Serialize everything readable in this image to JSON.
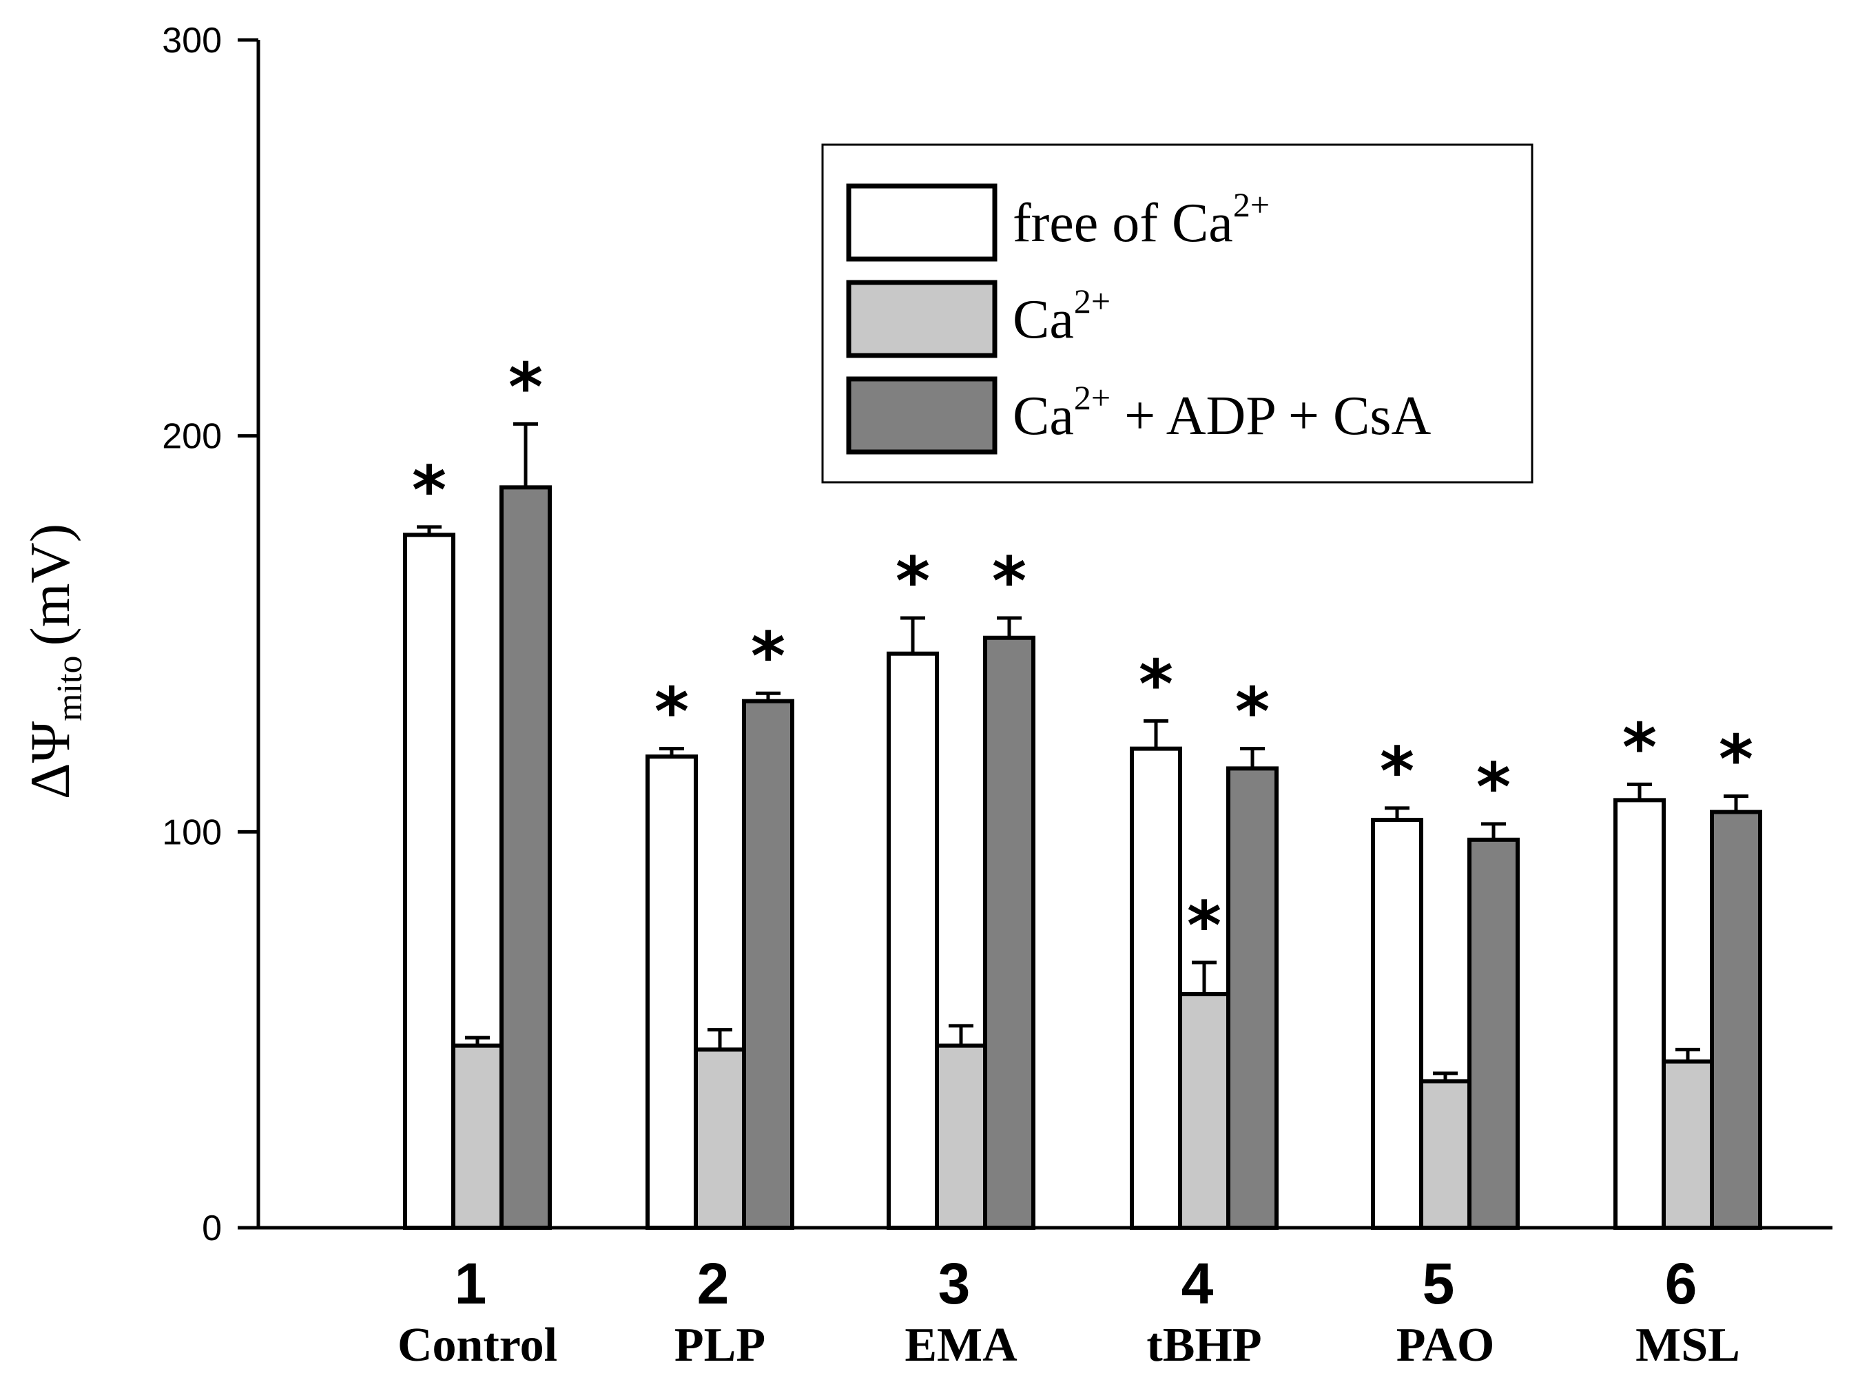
{
  "chart_data": {
    "type": "bar",
    "categories": [
      "1",
      "2",
      "3",
      "4",
      "5",
      "6"
    ],
    "category_names": [
      "Control",
      "PLP",
      "EMA",
      "tBHP",
      "PAO",
      "MSL"
    ],
    "ylabel": {
      "symbol": "ΔΨ",
      "subscript": "mito",
      "unit": "(mV)"
    },
    "ylim": [
      0,
      300
    ],
    "yticks": [
      0,
      100,
      200,
      300
    ],
    "series": [
      {
        "name": "free of Ca",
        "name_sup": "2+",
        "color": "#ffffff",
        "values": [
          175,
          119,
          145,
          121,
          103,
          108
        ],
        "errors": [
          2,
          2,
          9,
          7,
          3,
          4
        ],
        "significant": [
          true,
          true,
          true,
          true,
          true,
          true
        ]
      },
      {
        "name": "Ca",
        "name_sup": "2+",
        "color": "#c8c8c8",
        "values": [
          46,
          45,
          46,
          59,
          37,
          42
        ],
        "errors": [
          2,
          5,
          5,
          8,
          2,
          3
        ],
        "significant": [
          false,
          false,
          false,
          true,
          false,
          false
        ]
      },
      {
        "name": "Ca",
        "name_sup": "2+",
        "name_suffix": " + ADP + CsA",
        "color": "#808080",
        "values": [
          187,
          133,
          149,
          116,
          98,
          105
        ],
        "errors": [
          16,
          2,
          5,
          5,
          4,
          4
        ],
        "significant": [
          true,
          true,
          true,
          true,
          true,
          true
        ]
      }
    ],
    "significance_marker": "*",
    "legend_position": "top-right"
  }
}
